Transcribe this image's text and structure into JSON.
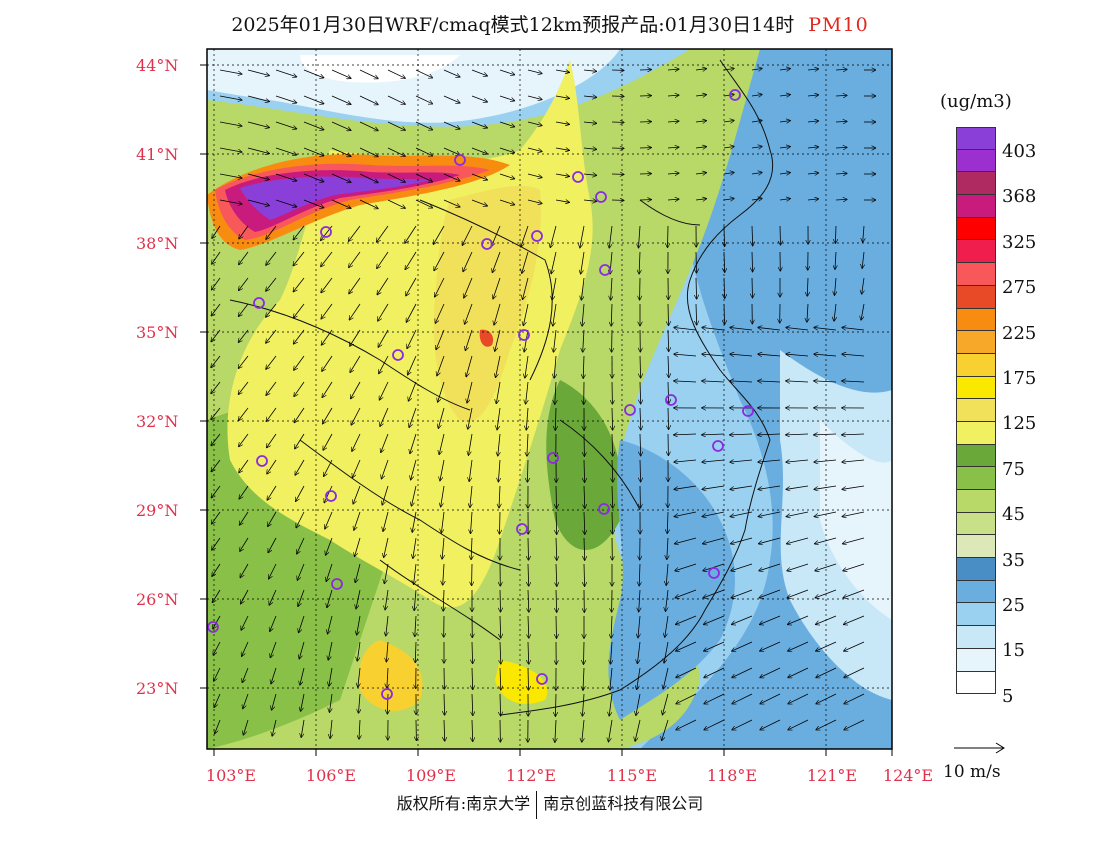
{
  "title": {
    "text": "2025年01月30日WRF/cmaq模式12km预报产品:01月30日14时",
    "variable": "PM10"
  },
  "axes": {
    "lat_labels": [
      "44°N",
      "41°N",
      "38°N",
      "35°N",
      "32°N",
      "29°N",
      "26°N",
      "23°N"
    ],
    "lon_labels": [
      "103°E",
      "106°E",
      "109°E",
      "112°E",
      "115°E",
      "118°E",
      "121°E",
      "124°E"
    ]
  },
  "legend": {
    "unit": "(ug/m3)",
    "levels": [
      "403",
      "368",
      "325",
      "275",
      "225",
      "175",
      "125",
      "75",
      "45",
      "35",
      "25",
      "15",
      "5"
    ],
    "colors": [
      "#8b3fd9",
      "#9b2fd0",
      "#b02a62",
      "#c91a7e",
      "#ff0000",
      "#f01e4c",
      "#f8585a",
      "#e84a28",
      "#f88c10",
      "#f8a828",
      "#f8d030",
      "#fbe800",
      "#f0e05a",
      "#f0f060",
      "#6aa83a",
      "#88c048",
      "#b8d868",
      "#c8e088",
      "#dce8b8",
      "#4a8ec6",
      "#6aaee0",
      "#9ad0f0",
      "#c8e8f8",
      "#e6f4fb",
      "#ffffff"
    ]
  },
  "reference_vector": {
    "label": "10 m/s"
  },
  "footer": {
    "left": "版权所有:南京大学",
    "right": "南京创蓝科技有限公司"
  },
  "colors": {
    "background": "#ffffff",
    "axis_label": "#e0304a",
    "station_marker": "#8a2be2"
  }
}
